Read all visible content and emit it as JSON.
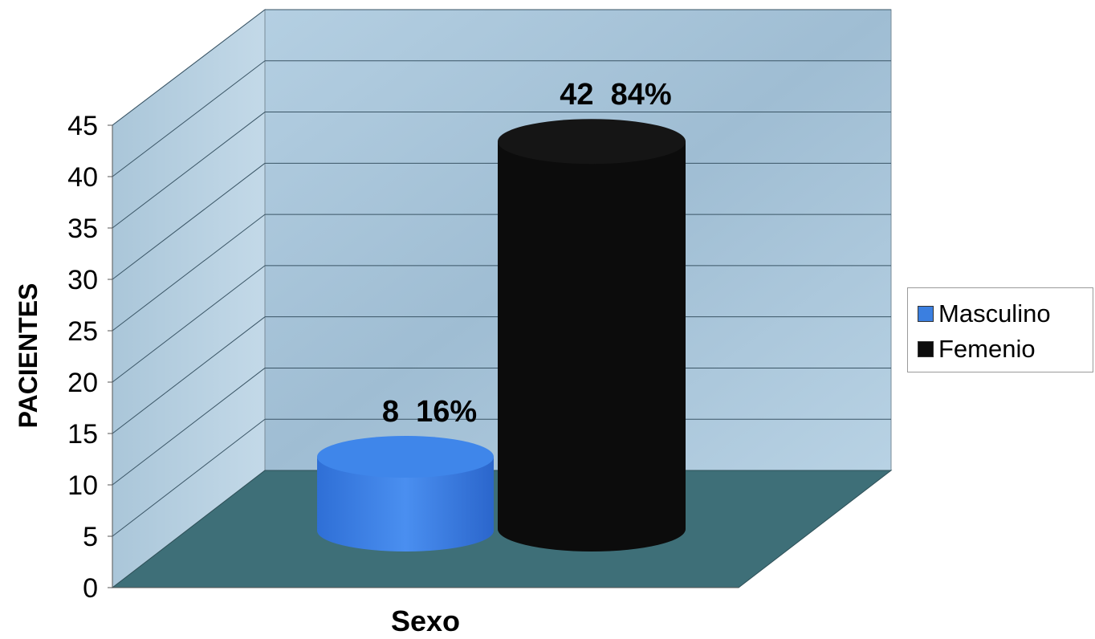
{
  "chart_data": {
    "type": "bar",
    "title": "",
    "xlabel": "Sexo",
    "ylabel": "PACIENTES",
    "categories": [
      "Masculino",
      "Femenio"
    ],
    "values": [
      8,
      42
    ],
    "data_labels": [
      "8  16%",
      "42  84%"
    ],
    "ylim": [
      0,
      45
    ],
    "yticks": [
      "0",
      "5",
      "10",
      "15",
      "20",
      "25",
      "30",
      "35",
      "40",
      "45"
    ],
    "grid": true,
    "legend_position": "right",
    "series": [
      {
        "name": "Masculino",
        "value": 8,
        "percent": "16%",
        "color": "#3b7fe0"
      },
      {
        "name": "Femenio",
        "value": 42,
        "percent": "84%",
        "color": "#0c0c0c"
      }
    ],
    "colors": {
      "wall": "#a9c6dc",
      "floor": "#3e6f78",
      "gridline": "#3a5566"
    }
  }
}
